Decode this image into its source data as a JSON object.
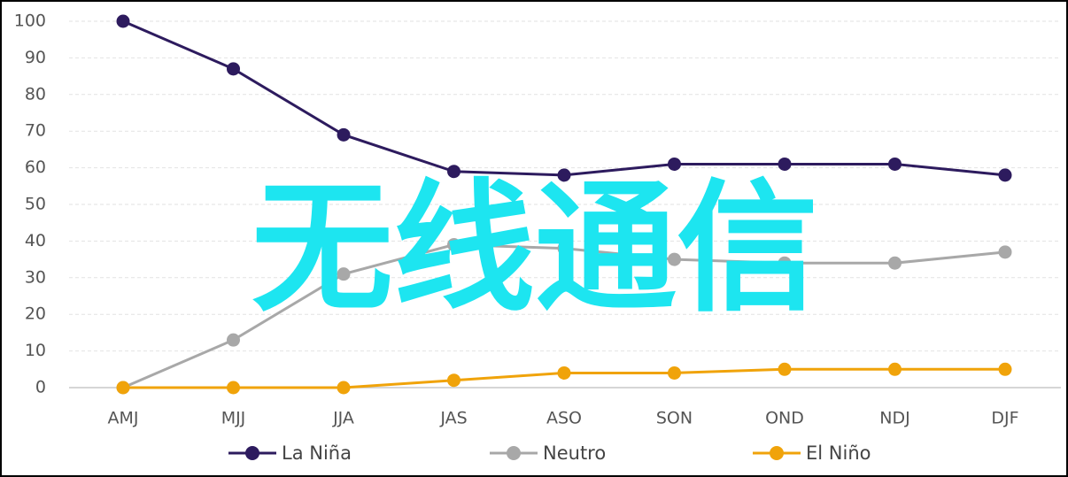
{
  "chart_data": {
    "type": "line",
    "categories": [
      "AMJ",
      "MJJ",
      "JJA",
      "JAS",
      "ASO",
      "SON",
      "OND",
      "NDJ",
      "DJF"
    ],
    "series": [
      {
        "name": "La Niña",
        "color": "#2d1b5e",
        "values": [
          100,
          87,
          69,
          59,
          58,
          61,
          61,
          61,
          58
        ]
      },
      {
        "name": "Neutro",
        "color": "#a8a8a8",
        "values": [
          0,
          13,
          31,
          39,
          38,
          35,
          34,
          34,
          37
        ]
      },
      {
        "name": "El Niño",
        "color": "#f0a30a",
        "values": [
          0,
          0,
          0,
          2,
          4,
          4,
          5,
          5,
          5
        ]
      }
    ],
    "ylim": [
      0,
      100
    ],
    "yticks": [
      0,
      10,
      20,
      30,
      40,
      50,
      60,
      70,
      80,
      90,
      100
    ],
    "grid": true,
    "legend": "bottom",
    "overlay_text": "无线通信",
    "overlay_color": "#1de5f0"
  }
}
